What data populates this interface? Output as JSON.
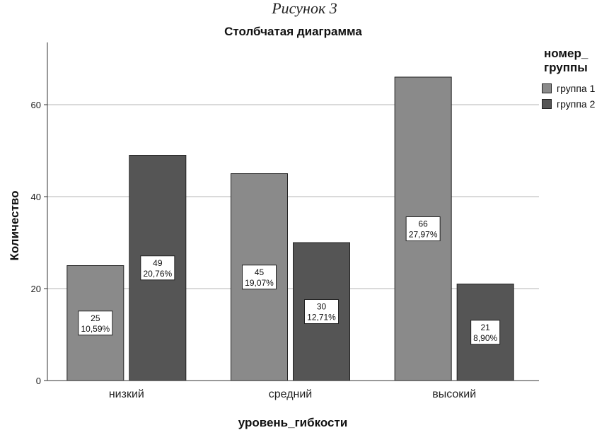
{
  "figure_caption": "Рисунок 3",
  "chart_data": {
    "type": "bar",
    "title": "Столбчатая диаграмма",
    "xlabel": "уровень_гибкости",
    "ylabel": "Количество",
    "categories": [
      "низкий",
      "средний",
      "высокий"
    ],
    "ylim": [
      0,
      74
    ],
    "yticks": [
      0,
      20,
      40,
      60
    ],
    "grid": true,
    "legend_title": "номер_\nгруппы",
    "legend_position": "right",
    "series": [
      {
        "name": "группа 1",
        "color": "#8a8a8a",
        "values": [
          25,
          45,
          66
        ],
        "labels": [
          "25\n10,59%",
          "45\n19,07%",
          "66\n27,97%"
        ]
      },
      {
        "name": "группа 2",
        "color": "#555555",
        "values": [
          49,
          30,
          21
        ],
        "labels": [
          "49\n20,76%",
          "30\n12,71%",
          "21\n8,90%"
        ]
      }
    ]
  }
}
